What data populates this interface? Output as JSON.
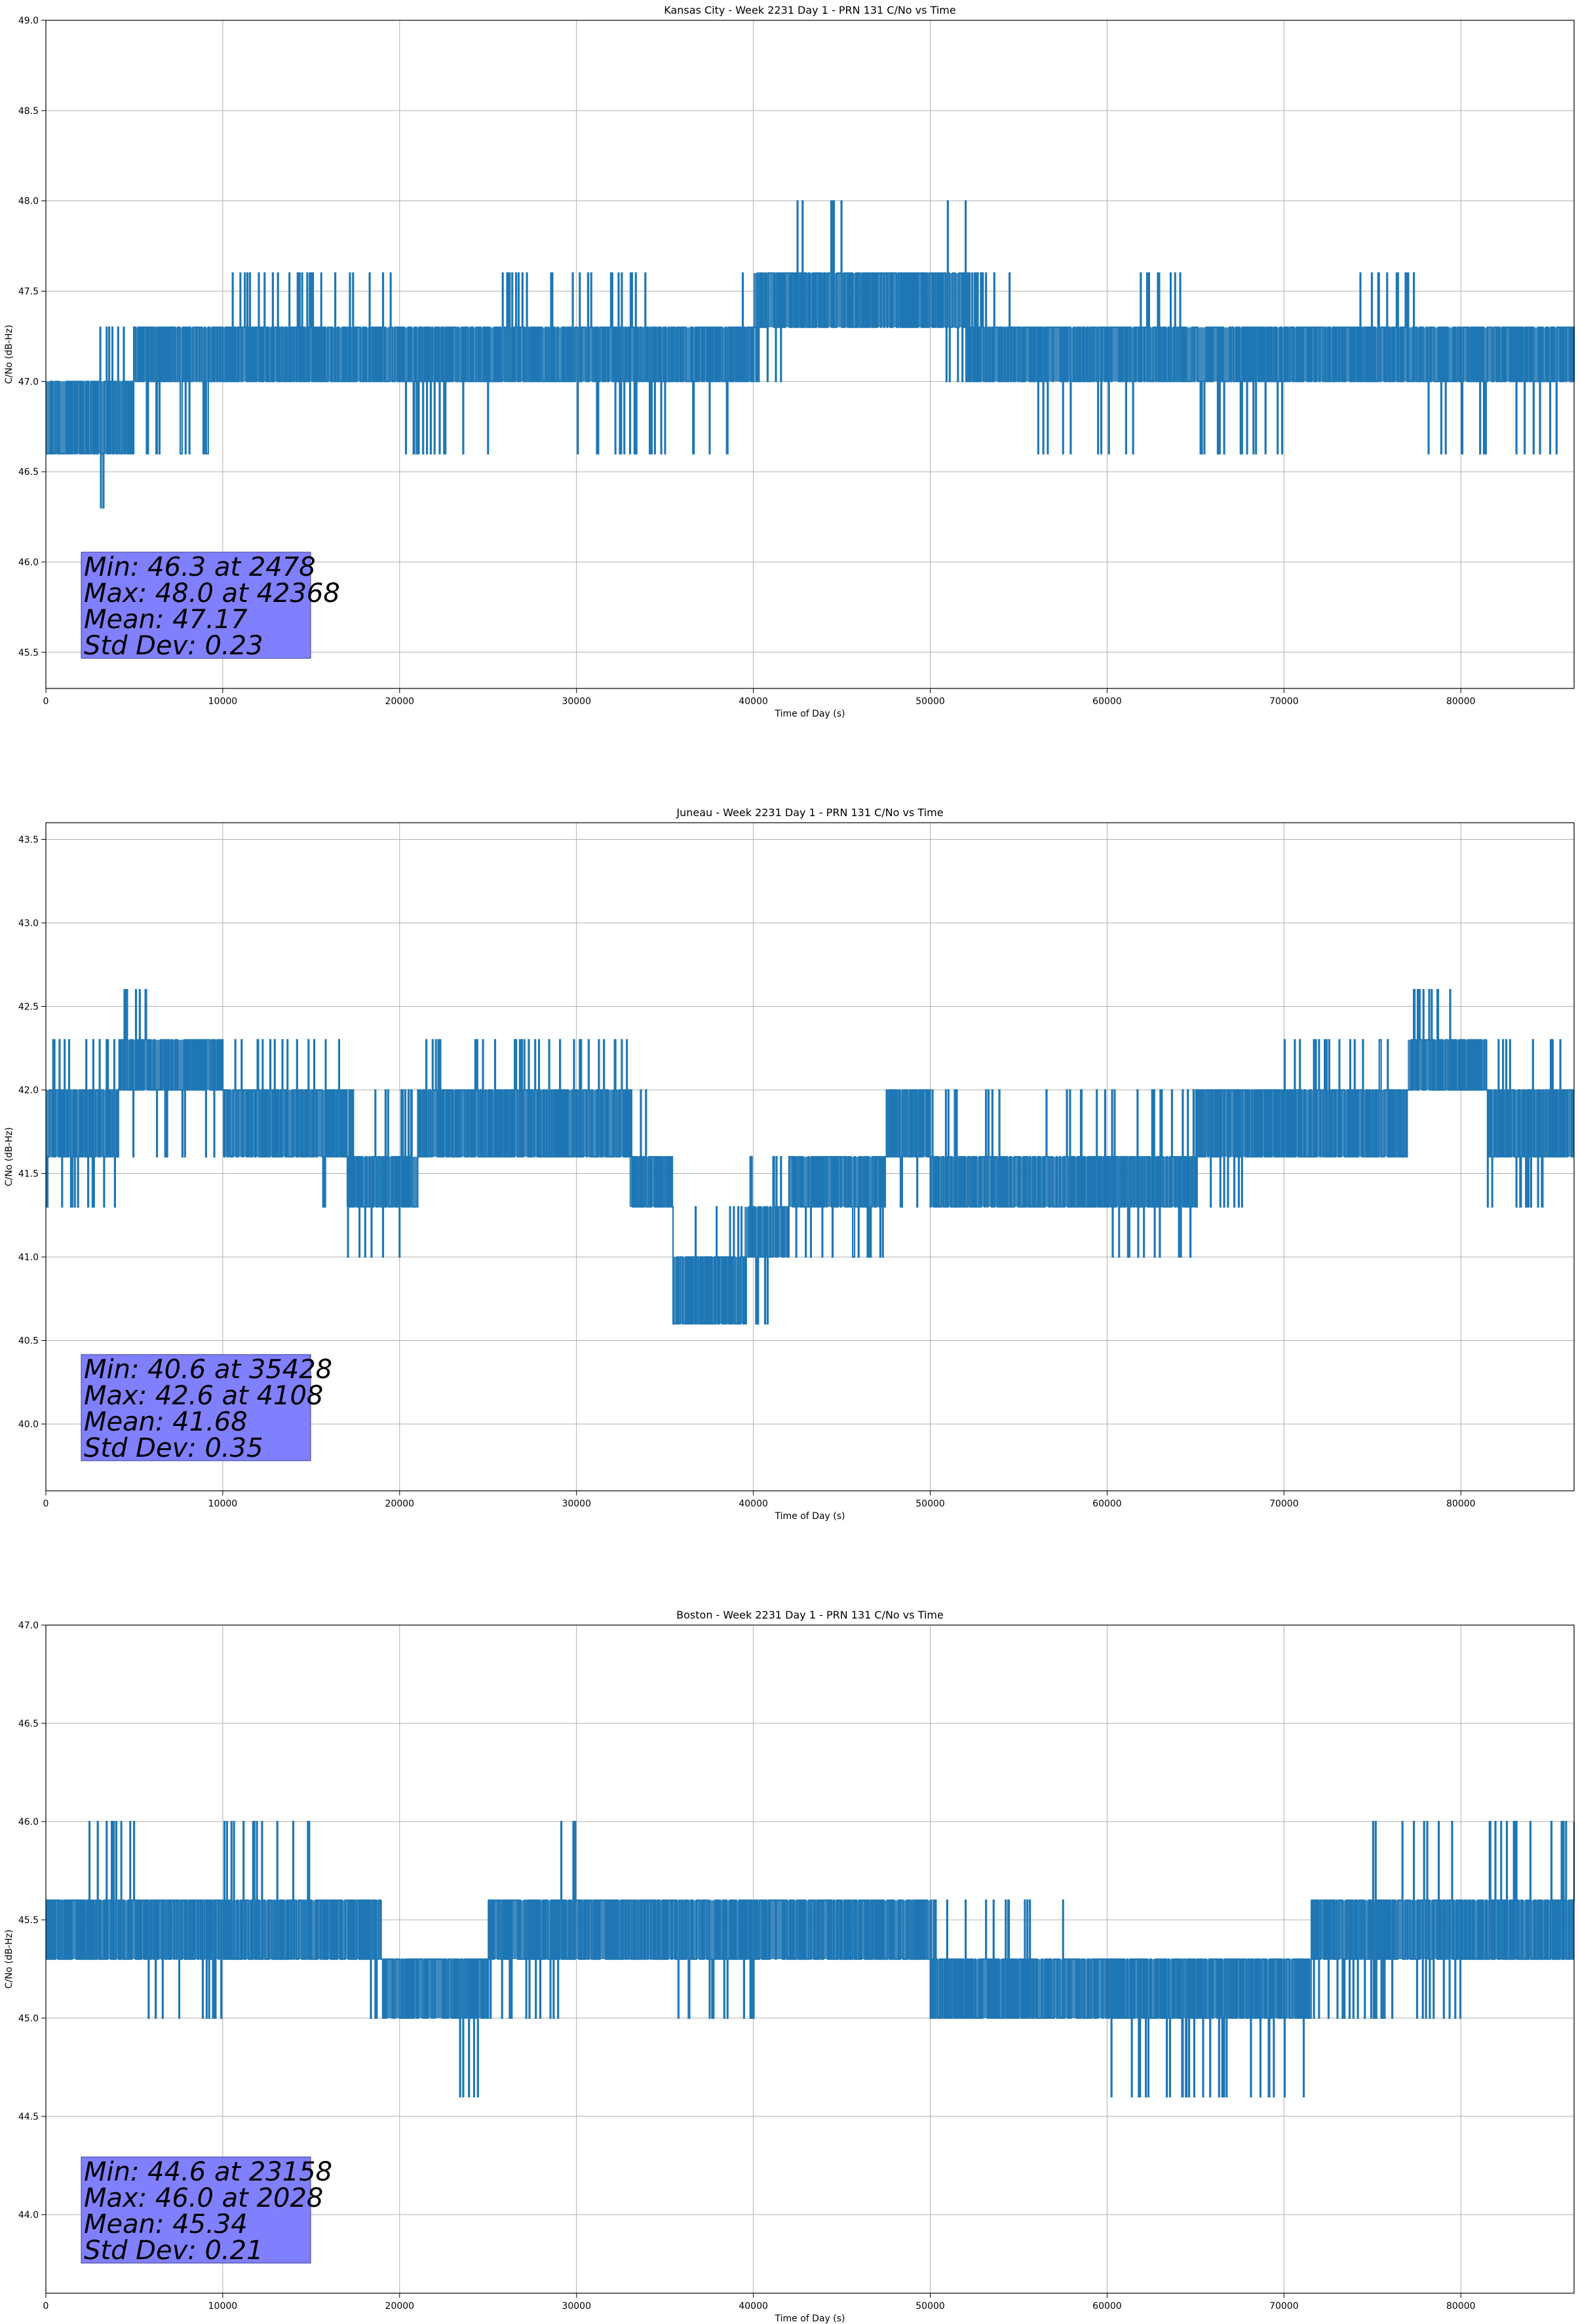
{
  "figure": {
    "background": "#ffffff",
    "line_color": "#1f77b4",
    "stats_box_color": "#8080ff",
    "grid_color": "#b0b0b0"
  },
  "chart_data": [
    {
      "type": "line",
      "title": "Kansas City - Week 2231 Day 1 - PRN 131 C/No vs Time",
      "xlabel": "Time of Day (s)",
      "ylabel": "C/No (dB-Hz)",
      "xlim": [
        0,
        86400
      ],
      "ylim": [
        45.3,
        49.0
      ],
      "xticks": [
        0,
        10000,
        20000,
        30000,
        40000,
        50000,
        60000,
        70000,
        80000
      ],
      "yticks": [
        "45.5",
        "46.0",
        "46.5",
        "47.0",
        "47.5",
        "48.0",
        "48.5",
        "49.0"
      ],
      "grid": true,
      "levels": [
        46.3,
        46.6,
        47.0,
        47.3,
        47.6,
        48.0
      ],
      "series": [
        {
          "x": [
            0,
            2000,
            2478,
            3500,
            5000,
            7000,
            8000,
            10000,
            15000,
            20000,
            25000,
            30000,
            35000,
            36500,
            39000,
            40000,
            42368,
            45000,
            50000,
            52000,
            55000,
            56000,
            58000,
            60000,
            61500,
            65000,
            70000,
            74000,
            78000,
            80000,
            82000,
            84000,
            86400
          ],
          "lo": [
            46.6,
            46.6,
            46.3,
            46.6,
            46.6,
            46.6,
            46.6,
            47.0,
            47.0,
            46.6,
            47.0,
            46.6,
            47.0,
            46.6,
            47.0,
            47.0,
            47.3,
            47.3,
            47.0,
            47.0,
            47.0,
            46.6,
            46.6,
            46.6,
            47.0,
            46.6,
            47.0,
            47.0,
            46.6,
            46.6,
            46.6,
            46.6,
            46.6
          ],
          "hi": [
            47.0,
            47.3,
            47.3,
            47.3,
            47.3,
            47.3,
            47.3,
            47.6,
            47.6,
            47.3,
            47.6,
            47.6,
            47.3,
            47.3,
            47.6,
            47.6,
            48.0,
            47.6,
            48.0,
            47.6,
            47.3,
            47.3,
            47.3,
            47.3,
            47.6,
            47.3,
            47.3,
            47.6,
            47.3,
            47.3,
            47.3,
            47.3,
            47.3
          ],
          "base": [
            46.6,
            46.6,
            46.6,
            46.6,
            47.0,
            47.0,
            47.0,
            47.0,
            47.0,
            47.0,
            47.0,
            47.0,
            47.0,
            47.0,
            47.0,
            47.3,
            47.3,
            47.3,
            47.3,
            47.0,
            47.0,
            47.0,
            47.0,
            47.0,
            47.0,
            47.0,
            47.0,
            47.0,
            47.0,
            47.0,
            47.0,
            47.0,
            47.0
          ],
          "top": [
            47.0,
            47.0,
            47.0,
            47.0,
            47.3,
            47.3,
            47.3,
            47.3,
            47.3,
            47.3,
            47.3,
            47.3,
            47.3,
            47.3,
            47.3,
            47.6,
            47.6,
            47.6,
            47.6,
            47.3,
            47.3,
            47.3,
            47.3,
            47.3,
            47.3,
            47.3,
            47.3,
            47.3,
            47.3,
            47.3,
            47.3,
            47.3,
            47.3
          ]
        }
      ],
      "stats": {
        "line1": "Min: 46.3 at 2478",
        "line2": "Max: 48.0 at 42368",
        "line3": "Mean: 47.17",
        "line4": "Std Dev: 0.23"
      }
    },
    {
      "type": "line",
      "title": "Juneau - Week 2231 Day 1 - PRN 131 C/No vs Time",
      "xlabel": "Time of Day (s)",
      "ylabel": "C/No (dB-Hz)",
      "xlim": [
        0,
        86400
      ],
      "ylim": [
        39.6,
        43.6
      ],
      "xticks": [
        0,
        10000,
        20000,
        30000,
        40000,
        50000,
        60000,
        70000,
        80000
      ],
      "yticks": [
        "40.0",
        "40.5",
        "41.0",
        "41.5",
        "42.0",
        "42.5",
        "43.0",
        "43.5"
      ],
      "grid": true,
      "levels": [
        40.6,
        41.0,
        41.3,
        41.6,
        42.0,
        42.3,
        42.6
      ],
      "series": [
        {
          "x": [
            0,
            2000,
            4108,
            6000,
            10000,
            15000,
            17000,
            19000,
            21000,
            25000,
            30000,
            33000,
            35428,
            37000,
            39500,
            42000,
            45000,
            47500,
            50000,
            55000,
            60000,
            65000,
            70000,
            73000,
            75000,
            77000,
            80000,
            81500,
            84000,
            86400
          ],
          "lo": [
            41.3,
            41.3,
            41.6,
            41.6,
            41.6,
            41.3,
            41.0,
            41.0,
            41.6,
            41.6,
            41.6,
            41.3,
            40.6,
            40.6,
            40.6,
            41.0,
            41.0,
            41.3,
            41.3,
            41.3,
            41.0,
            41.3,
            41.6,
            41.6,
            41.6,
            42.0,
            42.0,
            41.3,
            41.3,
            41.6
          ],
          "hi": [
            42.3,
            42.3,
            42.6,
            42.3,
            42.3,
            42.3,
            42.0,
            42.0,
            42.3,
            42.3,
            42.3,
            42.0,
            41.3,
            41.3,
            41.6,
            41.6,
            41.6,
            42.0,
            42.0,
            42.0,
            42.0,
            42.0,
            42.3,
            42.3,
            42.3,
            42.6,
            42.6,
            42.3,
            42.3,
            42.3
          ],
          "base": [
            41.6,
            41.6,
            42.0,
            42.0,
            41.6,
            41.6,
            41.3,
            41.3,
            41.6,
            41.6,
            41.6,
            41.3,
            40.6,
            40.6,
            41.0,
            41.3,
            41.3,
            41.6,
            41.3,
            41.3,
            41.3,
            41.6,
            41.6,
            41.6,
            41.6,
            42.0,
            42.0,
            41.6,
            41.6,
            41.6
          ],
          "top": [
            42.0,
            42.0,
            42.3,
            42.3,
            42.0,
            42.0,
            41.6,
            41.6,
            42.0,
            42.0,
            42.0,
            41.6,
            41.0,
            41.0,
            41.3,
            41.6,
            41.6,
            42.0,
            41.6,
            41.6,
            41.6,
            42.0,
            42.0,
            42.0,
            42.0,
            42.3,
            42.3,
            42.0,
            42.0,
            42.0
          ]
        }
      ],
      "stats": {
        "line1": "Min: 40.6 at 35428",
        "line2": "Max: 42.6 at 4108",
        "line3": "Mean: 41.68",
        "line4": "Std Dev: 0.35"
      }
    },
    {
      "type": "line",
      "title": "Boston - Week 2231 Day 1 - PRN 131 C/No vs Time",
      "xlabel": "Time of Day (s)",
      "ylabel": "C/No (dB-Hz)",
      "xlim": [
        0,
        86400
      ],
      "ylim": [
        43.6,
        47.0
      ],
      "xticks": [
        0,
        10000,
        20000,
        30000,
        40000,
        50000,
        60000,
        70000,
        80000
      ],
      "yticks": [
        "44.0",
        "44.5",
        "45.0",
        "45.5",
        "46.0",
        "46.5",
        "47.0"
      ],
      "grid": true,
      "levels": [
        44.6,
        45.0,
        45.3,
        45.6,
        46.0
      ],
      "series": [
        {
          "x": [
            0,
            2028,
            5000,
            10000,
            12000,
            15000,
            18000,
            19000,
            23158,
            25000,
            29000,
            30000,
            35000,
            40000,
            45000,
            50000,
            52000,
            55000,
            58000,
            60000,
            62000,
            65000,
            70000,
            71500,
            75000,
            80000,
            83000,
            86400
          ],
          "lo": [
            45.3,
            45.3,
            45.0,
            45.3,
            45.3,
            45.3,
            45.0,
            45.0,
            44.6,
            45.0,
            45.3,
            45.3,
            45.0,
            45.3,
            45.3,
            45.0,
            45.0,
            45.0,
            45.0,
            44.6,
            44.6,
            44.6,
            44.6,
            45.0,
            45.0,
            45.3,
            45.3,
            45.3
          ],
          "hi": [
            45.6,
            46.0,
            45.6,
            46.0,
            46.0,
            45.6,
            45.6,
            45.3,
            45.3,
            45.6,
            46.0,
            45.6,
            45.6,
            45.6,
            45.6,
            45.6,
            45.6,
            45.6,
            45.3,
            45.3,
            45.3,
            45.3,
            45.3,
            45.6,
            46.0,
            46.0,
            46.0,
            46.0
          ],
          "base": [
            45.3,
            45.3,
            45.3,
            45.3,
            45.3,
            45.3,
            45.3,
            45.0,
            45.0,
            45.3,
            45.3,
            45.3,
            45.3,
            45.3,
            45.3,
            45.0,
            45.0,
            45.0,
            45.0,
            45.0,
            45.0,
            45.0,
            45.0,
            45.3,
            45.3,
            45.3,
            45.3,
            45.3
          ],
          "top": [
            45.6,
            45.6,
            45.6,
            45.6,
            45.6,
            45.6,
            45.6,
            45.3,
            45.3,
            45.6,
            45.6,
            45.6,
            45.6,
            45.6,
            45.6,
            45.3,
            45.3,
            45.3,
            45.3,
            45.3,
            45.3,
            45.3,
            45.3,
            45.6,
            45.6,
            45.6,
            45.6,
            45.6
          ]
        }
      ],
      "stats": {
        "line1": "Min: 44.6 at 23158",
        "line2": "Max: 46.0 at 2028",
        "line3": "Mean: 45.34",
        "line4": "Std Dev: 0.21"
      }
    }
  ]
}
